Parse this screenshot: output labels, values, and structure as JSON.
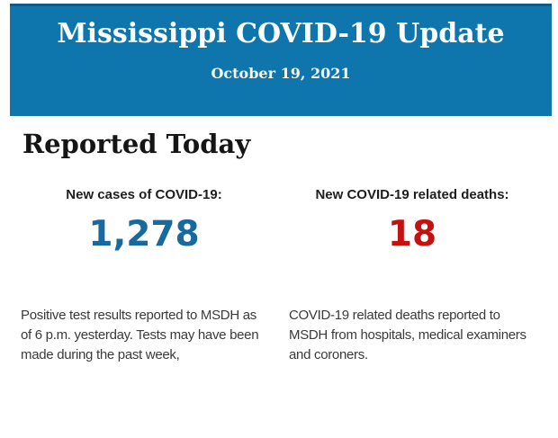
{
  "banner": {
    "title": "Mississippi COVID-19 Update",
    "date": "October 19, 2021"
  },
  "main": {
    "heading": "Reported Today",
    "stats": [
      {
        "label": "New cases of COVID-19:",
        "value": "1,278",
        "description": "Positive test results reported to MSDH as of 6 p.m. yesterday. Tests may have been made during the past week,"
      },
      {
        "label": "New COVID-19 related deaths:",
        "value": "18",
        "description": "COVID-19 related deaths reported to MSDH from hospitals, medical examiners and coroners."
      }
    ]
  },
  "colors": {
    "banner_blue": "#0f76ad",
    "banner_accent_dark": "#0a5c8c",
    "cases_blue": "#17699e",
    "deaths_red": "#c41111"
  }
}
